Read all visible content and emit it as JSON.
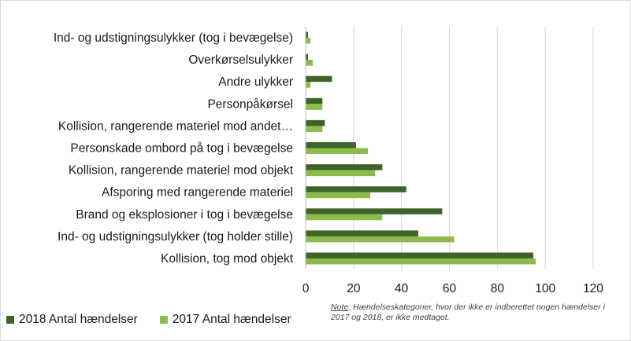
{
  "colors": {
    "series_2018": "#3d6327",
    "series_2017": "#8dbb4e",
    "grid": "#d9d9d9",
    "axis": "#bfbfbf"
  },
  "note": {
    "label": "Note",
    "text": ": Hændelseskategorier, hvor der ikke er indberettet nogen hændelser i 2017 og 2018, er ikke medtaget."
  },
  "chart_data": {
    "type": "bar",
    "orientation": "horizontal",
    "categories": [
      "Ind- og udstigningsulykker (tog i bevægelse)",
      "Overkørselsulykker",
      "Andre ulykker",
      "Personpåkørsel",
      "Kollision, rangerende materiel mod andet…",
      "Personskade ombord på tog i bevægelse",
      "Kollision, rangerende materiel mod objekt",
      "Afsporing med rangerende materiel",
      "Brand og eksplosioner i tog i bevægelse",
      "Ind- og udstigningsulykker (tog holder stille)",
      "Kollision, tog mod objekt"
    ],
    "series": [
      {
        "name": "2018 Antal hændelser",
        "values": [
          1,
          1,
          11,
          7,
          8,
          21,
          32,
          42,
          57,
          47,
          95
        ]
      },
      {
        "name": "2017 Antal hændelser",
        "values": [
          2,
          3,
          2,
          7,
          7,
          26,
          29,
          27,
          32,
          62,
          96
        ]
      }
    ],
    "xlim": [
      0,
      120
    ],
    "xticks": [
      0,
      20,
      40,
      60,
      80,
      100,
      120
    ],
    "grid": true,
    "legend": "bottom-left"
  }
}
